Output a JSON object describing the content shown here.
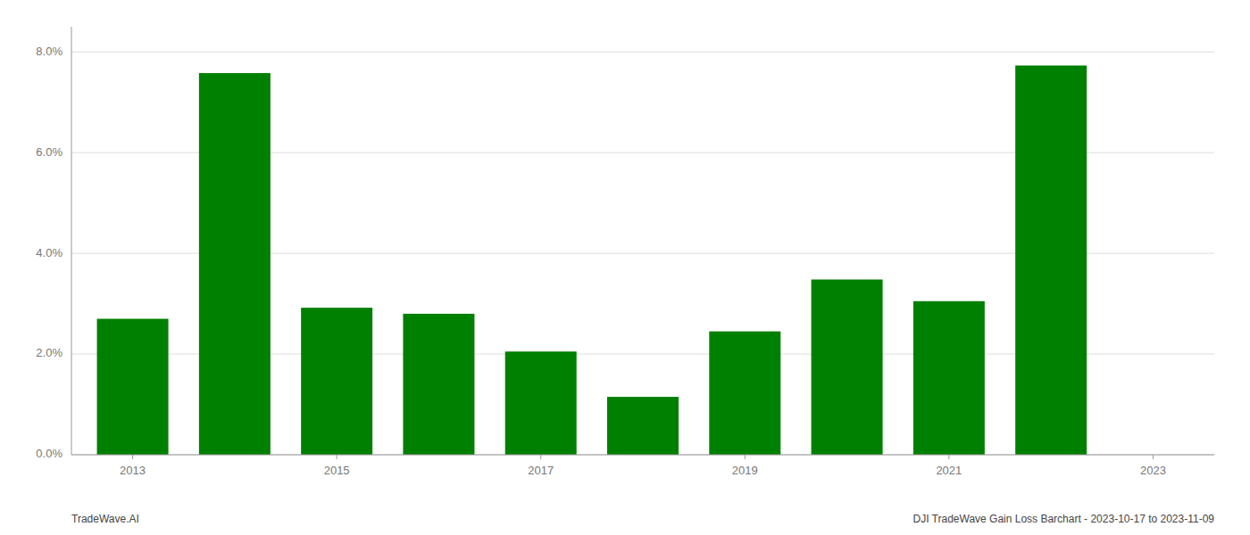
{
  "chart_data": {
    "type": "bar",
    "x": [
      2013,
      2014,
      2015,
      2016,
      2017,
      2018,
      2019,
      2020,
      2021,
      2022
    ],
    "values": [
      0.027,
      0.0758,
      0.0292,
      0.028,
      0.0205,
      0.0115,
      0.0245,
      0.0348,
      0.0305,
      0.0773
    ],
    "color": "#008000",
    "xlim": [
      2012.4,
      2023.6
    ],
    "xticks": [
      2013,
      2015,
      2017,
      2019,
      2021,
      2023
    ],
    "ylim": [
      0.0,
      0.085
    ],
    "yticks": [
      {
        "value": 0.0,
        "label": "0.0%"
      },
      {
        "value": 0.02,
        "label": "2.0%"
      },
      {
        "value": 0.04,
        "label": "4.0%"
      },
      {
        "value": 0.06,
        "label": "6.0%"
      },
      {
        "value": 0.08,
        "label": "8.0%"
      }
    ],
    "grid": true,
    "annotations": [
      "TradeWave.AI",
      "DJI TradeWave Gain Loss Barchart - 2023-10-17 to 2023-11-09"
    ]
  }
}
